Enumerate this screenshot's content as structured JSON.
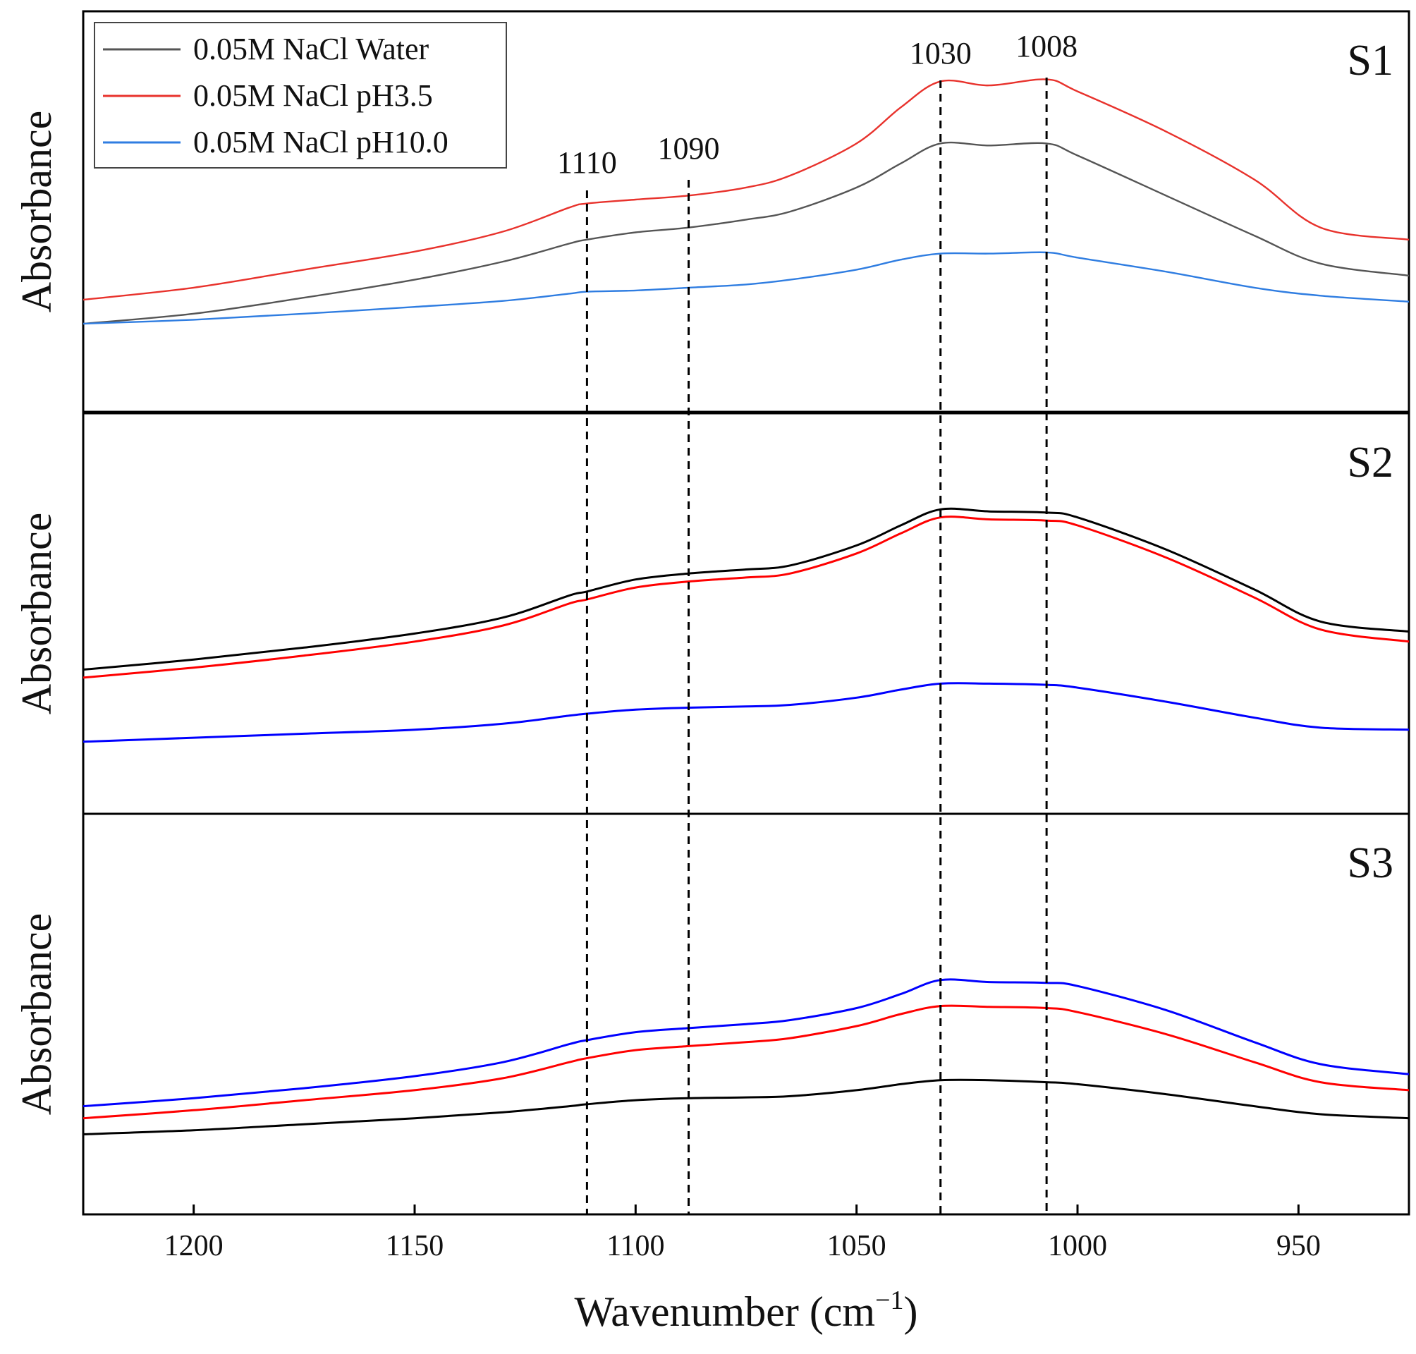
{
  "chart_data": {
    "type": "line",
    "x_axis": {
      "label": "Wavenumber (cm",
      "label_superscript": "−1",
      "label_suffix": ")",
      "range": [
        1225,
        925
      ],
      "reversed": true,
      "ticks": [
        1200,
        1150,
        1100,
        1050,
        1000,
        950
      ]
    },
    "ylabel": "Absorbance",
    "ylim": [
      0,
      1
    ],
    "peak_markers": [
      {
        "x": 1111,
        "label": "1110"
      },
      {
        "x": 1088,
        "label": "1090"
      },
      {
        "x": 1031,
        "label": "1030"
      },
      {
        "x": 1007,
        "label": "1008"
      }
    ],
    "legend": {
      "position": "top-left",
      "entries": [
        {
          "name": "0.05M NaCl Water",
          "color": "#555555"
        },
        {
          "name": "0.05M NaCl pH3.5",
          "color": "#e8322c"
        },
        {
          "name": "0.05M NaCl pH10.0",
          "color": "#2f7de1"
        }
      ]
    },
    "x": [
      1225,
      1200,
      1175,
      1150,
      1130,
      1115,
      1111,
      1100,
      1088,
      1075,
      1065,
      1050,
      1040,
      1031,
      1020,
      1007,
      1000,
      980,
      960,
      945,
      925
    ],
    "panels": [
      {
        "name": "S1",
        "series": [
          {
            "name": "0.05M NaCl Water",
            "color": "#555555",
            "width": 2.4,
            "values": [
              0.22,
              0.245,
              0.285,
              0.33,
              0.375,
              0.42,
              0.43,
              0.448,
              0.46,
              0.48,
              0.5,
              0.56,
              0.62,
              0.67,
              0.665,
              0.67,
              0.64,
              0.54,
              0.44,
              0.37,
              0.34
            ]
          },
          {
            "name": "0.05M NaCl pH3.5",
            "color": "#e8322c",
            "width": 2.4,
            "values": [
              0.28,
              0.31,
              0.355,
              0.4,
              0.45,
              0.51,
              0.52,
              0.53,
              0.54,
              0.56,
              0.59,
              0.67,
              0.76,
              0.825,
              0.815,
              0.83,
              0.8,
              0.7,
              0.58,
              0.46,
              0.43
            ]
          },
          {
            "name": "0.05M NaCl pH10.0",
            "color": "#2f7de1",
            "width": 2.4,
            "values": [
              0.22,
              0.23,
              0.245,
              0.262,
              0.277,
              0.295,
              0.3,
              0.303,
              0.31,
              0.318,
              0.33,
              0.355,
              0.38,
              0.395,
              0.395,
              0.398,
              0.385,
              0.35,
              0.31,
              0.29,
              0.275
            ]
          }
        ]
      },
      {
        "name": "S2",
        "series": [
          {
            "name": "0.05M NaCl Water",
            "color": "#000000",
            "width": 3.0,
            "values": [
              0.36,
              0.385,
              0.415,
              0.45,
              0.49,
              0.545,
              0.555,
              0.585,
              0.6,
              0.61,
              0.62,
              0.67,
              0.72,
              0.76,
              0.755,
              0.752,
              0.74,
              0.66,
              0.56,
              0.48,
              0.455
            ]
          },
          {
            "name": "0.05M NaCl pH3.5",
            "color": "#ff0000",
            "width": 3.0,
            "values": [
              0.34,
              0.365,
              0.395,
              0.43,
              0.47,
              0.525,
              0.535,
              0.565,
              0.58,
              0.59,
              0.6,
              0.65,
              0.7,
              0.74,
              0.735,
              0.732,
              0.72,
              0.64,
              0.54,
              0.46,
              0.43
            ]
          },
          {
            "name": "0.05M NaCl pH10.0",
            "color": "#0000ff",
            "width": 3.0,
            "values": [
              0.18,
              0.19,
              0.2,
              0.21,
              0.225,
              0.245,
              0.25,
              0.26,
              0.265,
              0.268,
              0.272,
              0.29,
              0.31,
              0.325,
              0.325,
              0.322,
              0.315,
              0.28,
              0.24,
              0.215,
              0.21
            ]
          }
        ]
      },
      {
        "name": "S3",
        "series": [
          {
            "name": "0.05M NaCl Water",
            "color": "#000000",
            "width": 3.0,
            "values": [
              0.2,
              0.21,
              0.225,
              0.24,
              0.255,
              0.27,
              0.275,
              0.285,
              0.29,
              0.292,
              0.295,
              0.31,
              0.325,
              0.335,
              0.335,
              0.33,
              0.325,
              0.3,
              0.27,
              0.25,
              0.24
            ]
          },
          {
            "name": "0.05M NaCl pH3.5",
            "color": "#ff0000",
            "width": 3.0,
            "values": [
              0.24,
              0.26,
              0.285,
              0.31,
              0.34,
              0.38,
              0.39,
              0.41,
              0.42,
              0.43,
              0.44,
              0.47,
              0.5,
              0.52,
              0.518,
              0.515,
              0.505,
              0.45,
              0.38,
              0.33,
              0.31
            ]
          },
          {
            "name": "0.05M NaCl pH10.0",
            "color": "#0000ff",
            "width": 3.0,
            "values": [
              0.27,
              0.29,
              0.315,
              0.345,
              0.38,
              0.425,
              0.435,
              0.455,
              0.465,
              0.475,
              0.485,
              0.515,
              0.55,
              0.585,
              0.58,
              0.578,
              0.57,
              0.51,
              0.43,
              0.375,
              0.35
            ]
          }
        ]
      }
    ]
  }
}
